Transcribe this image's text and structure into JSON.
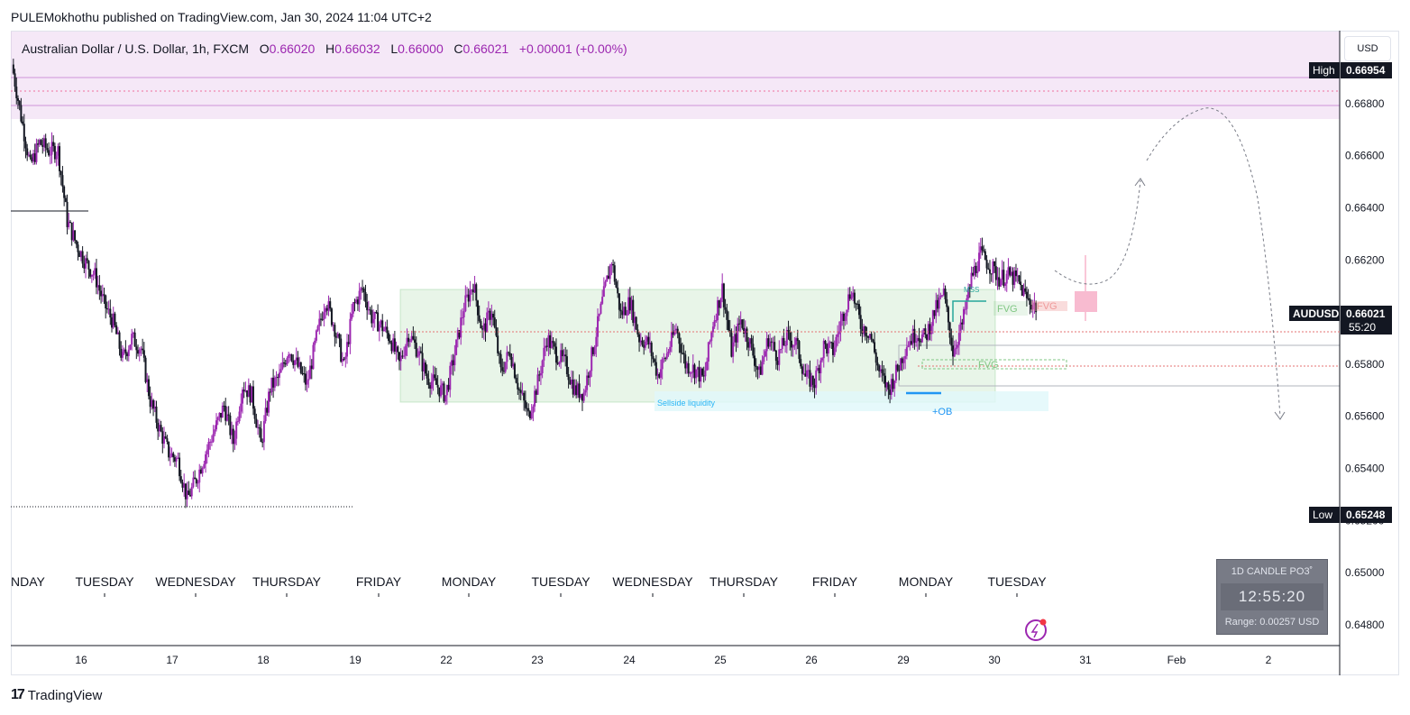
{
  "header": {
    "published": "PULEMokhothu published on TradingView.com, Jan 30, 2024 11:04 UTC+2"
  },
  "legend": {
    "symbol": "Australian Dollar / U.S. Dollar, 1h, FXCM",
    "o_label": "O",
    "o_value": "0.66020",
    "h_label": "H",
    "h_value": "0.66032",
    "l_label": "L",
    "l_value": "0.66000",
    "c_label": "C",
    "c_value": "0.66021",
    "change": "+0.00001 (+0.00%)"
  },
  "currency": "USD",
  "footer": {
    "brand": "TradingView"
  },
  "widget": {
    "title": "1D CANDLE PO3˚",
    "time": "12:55:20",
    "range": "Range: 0.00257 USD"
  },
  "colors": {
    "up": "#9c27b0",
    "down": "#131722",
    "range_box": "#4caf50",
    "premium_zone": "#e1bee7",
    "sellside": "#e0f7fa"
  },
  "chart_data": {
    "type": "candlestick",
    "symbol": "AUDUSD",
    "ylim": [
      0.6472,
      0.6708
    ],
    "yticks": [
      "0.66800",
      "0.66600",
      "0.66400",
      "0.66200",
      "0.65800",
      "0.65600",
      "0.65400",
      "0.65200",
      "0.65000",
      "0.64800"
    ],
    "x_dates": [
      "16",
      "17",
      "18",
      "19",
      "22",
      "23",
      "24",
      "25",
      "26",
      "29",
      "30",
      "31",
      "Feb",
      "2"
    ],
    "x_days": [
      "NDAY",
      "TUESDAY",
      "WEDNESDAY",
      "THURSDAY",
      "FRIDAY",
      "MONDAY",
      "TUESDAY",
      "WEDNESDAY",
      "THURSDAY",
      "FRIDAY",
      "MONDAY",
      "TUESDAY"
    ],
    "price_labels": {
      "high": {
        "label": "High",
        "value": "0.66954"
      },
      "low": {
        "label": "Low",
        "value": "0.65248"
      },
      "last": {
        "label": "AUDUSD",
        "value": "0.66021",
        "countdown": "55:20"
      }
    },
    "path": [
      0.6695,
      0.6675,
      0.6656,
      0.6665,
      0.6662,
      0.6662,
      0.6635,
      0.6626,
      0.6619,
      0.6614,
      0.6603,
      0.6596,
      0.6582,
      0.659,
      0.6586,
      0.6566,
      0.6555,
      0.6546,
      0.6543,
      0.6528,
      0.6536,
      0.6546,
      0.6555,
      0.6564,
      0.655,
      0.6572,
      0.6568,
      0.6549,
      0.6571,
      0.6575,
      0.6586,
      0.6579,
      0.6572,
      0.659,
      0.6605,
      0.6594,
      0.6579,
      0.6602,
      0.6609,
      0.6598,
      0.6595,
      0.659,
      0.658,
      0.6592,
      0.6585,
      0.6575,
      0.6572,
      0.6568,
      0.6584,
      0.6602,
      0.6611,
      0.6592,
      0.6601,
      0.6577,
      0.6585,
      0.657,
      0.656,
      0.6573,
      0.659,
      0.6584,
      0.658,
      0.657,
      0.6569,
      0.6586,
      0.6604,
      0.662,
      0.6599,
      0.6604,
      0.659,
      0.6588,
      0.6576,
      0.6584,
      0.6594,
      0.658,
      0.6578,
      0.6574,
      0.6596,
      0.6609,
      0.6585,
      0.6597,
      0.6588,
      0.6576,
      0.659,
      0.6583,
      0.659,
      0.6588,
      0.6575,
      0.6573,
      0.6587,
      0.6585,
      0.6598,
      0.6609,
      0.6595,
      0.6592,
      0.6577,
      0.657,
      0.6578,
      0.6588,
      0.6592,
      0.659,
      0.66,
      0.6607,
      0.6585,
      0.6595,
      0.6613,
      0.6622,
      0.6618,
      0.6613,
      0.6614,
      0.6612,
      0.6605,
      0.6602
    ],
    "annotations": {
      "mss": "MSS",
      "fvg": "FVG",
      "fvg_red": "FVG",
      "fvg_green": "FVG",
      "sellside": "Sellside liquidity",
      "ob": "+OB"
    }
  }
}
